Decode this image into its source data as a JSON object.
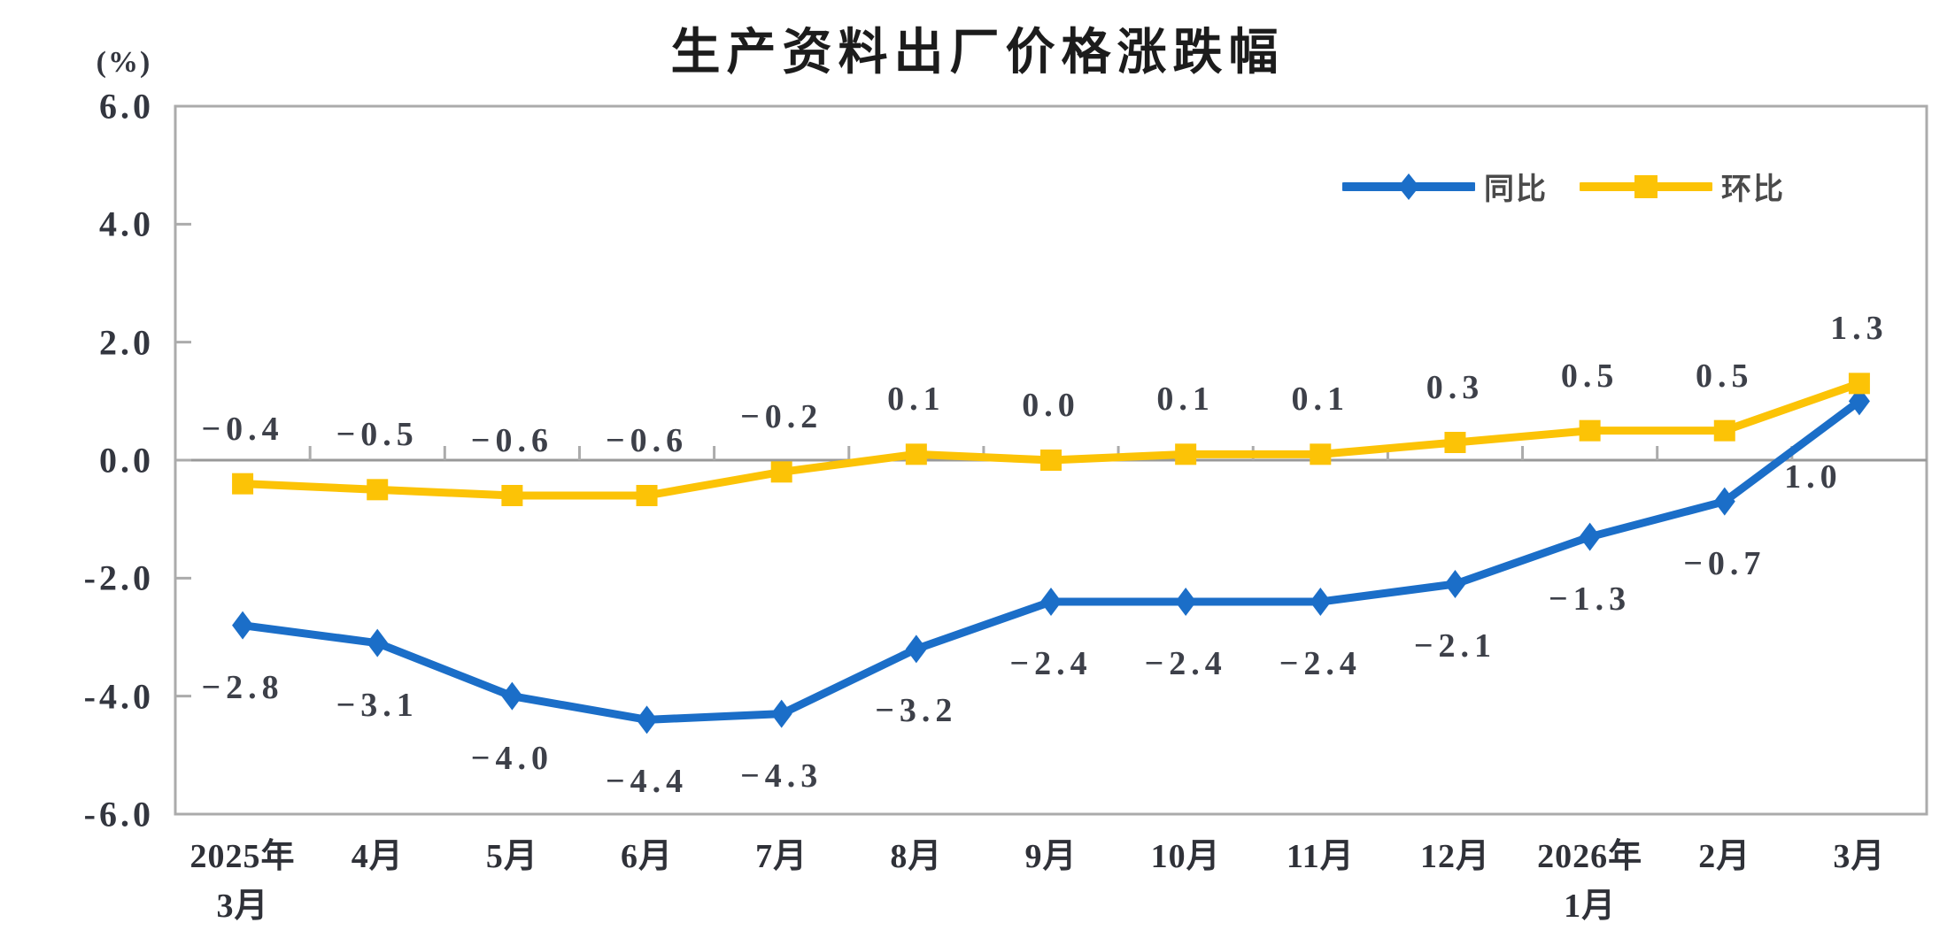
{
  "chart_data": {
    "type": "line",
    "title": "生产资料出厂价格涨跌幅",
    "unit_label": "(%)",
    "categories": [
      "2025年\n3月",
      "4月",
      "5月",
      "6月",
      "7月",
      "8月",
      "9月",
      "10月",
      "11月",
      "12月",
      "2026年\n1月",
      "2月",
      "3月"
    ],
    "series": [
      {
        "name": "同比",
        "marker": "diamond",
        "color": "#1B6EC8",
        "values": [
          -2.8,
          -3.1,
          -4.0,
          -4.4,
          -4.3,
          -3.2,
          -2.4,
          -2.4,
          -2.4,
          -2.1,
          -1.3,
          -0.7,
          1.0
        ],
        "labels": [
          "−2.8",
          "−3.1",
          "−4.0",
          "−4.4",
          "−4.3",
          "−3.2",
          "−2.4",
          "−2.4",
          "−2.4",
          "−2.1",
          "−1.3",
          "−0.7",
          "1.0"
        ],
        "label_position": "below"
      },
      {
        "name": "环比",
        "marker": "square",
        "color": "#FCC306",
        "values": [
          -0.4,
          -0.5,
          -0.6,
          -0.6,
          -0.2,
          0.1,
          0.0,
          0.1,
          0.1,
          0.3,
          0.5,
          0.5,
          1.3
        ],
        "labels": [
          "−0.4",
          "−0.5",
          "−0.6",
          "−0.6",
          "−0.2",
          "0.1",
          "0.0",
          "0.1",
          "0.1",
          "0.3",
          "0.5",
          "0.5",
          "1.3"
        ],
        "label_position": "above"
      }
    ],
    "ylim": [
      -6.0,
      6.0
    ],
    "ytick_step": 2.0,
    "yticks": [
      "6.0",
      "4.0",
      "2.0",
      "0.0",
      "-2.0",
      "-4.0",
      "-6.0"
    ],
    "grid": "none",
    "legend_position": "top-right",
    "colors": {
      "plot_border": "#ABABAB",
      "zero_line": "#999999",
      "tick": "#ABABAB",
      "label_text": "#3d4049",
      "title_text": "#1c1c1c"
    }
  }
}
